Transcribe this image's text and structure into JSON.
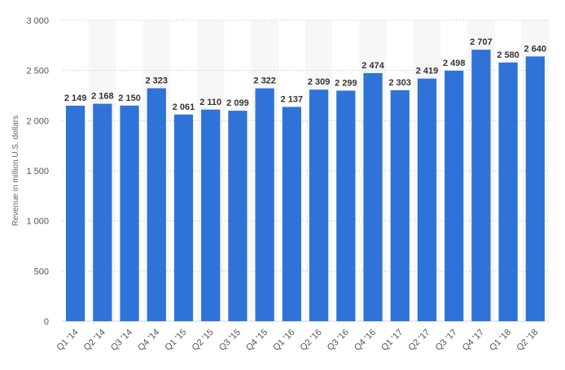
{
  "chart_data": {
    "type": "bar",
    "title": "",
    "xlabel": "",
    "ylabel": "Revenue in million U.S. dollars",
    "ylim": [
      0,
      3000
    ],
    "yticks": [
      0,
      500,
      1000,
      1500,
      2000,
      2500,
      3000
    ],
    "ytick_labels": [
      "0",
      "500",
      "1 000",
      "1 500",
      "2 000",
      "2 500",
      "3 000"
    ],
    "grid": true,
    "legend": "none",
    "categories": [
      "Q1 '14",
      "Q2 '14",
      "Q3 '14",
      "Q4 '14",
      "Q1 '15",
      "Q2 '15",
      "Q3 '15",
      "Q4 '15",
      "Q1 '16",
      "Q2 '16",
      "Q3 '16",
      "Q4 '16",
      "Q1 '17",
      "Q2 '17",
      "Q3 '17",
      "Q4 '17",
      "Q1 '18",
      "Q2 '18"
    ],
    "values": [
      2149,
      2168,
      2150,
      2323,
      2061,
      2110,
      2099,
      2322,
      2137,
      2309,
      2299,
      2474,
      2303,
      2419,
      2498,
      2707,
      2580,
      2640
    ],
    "value_labels": [
      "2 149",
      "2 168",
      "2 150",
      "2 323",
      "2 061",
      "2 110",
      "2 099",
      "2 322",
      "2 137",
      "2 309",
      "2 299",
      "2 474",
      "2 303",
      "2 419",
      "2 498",
      "2 707",
      "2 580",
      "2 640"
    ],
    "colors": {
      "bar": "#2f73d9",
      "grid": "#d6d6d6",
      "band": "#f7f7f7"
    }
  }
}
